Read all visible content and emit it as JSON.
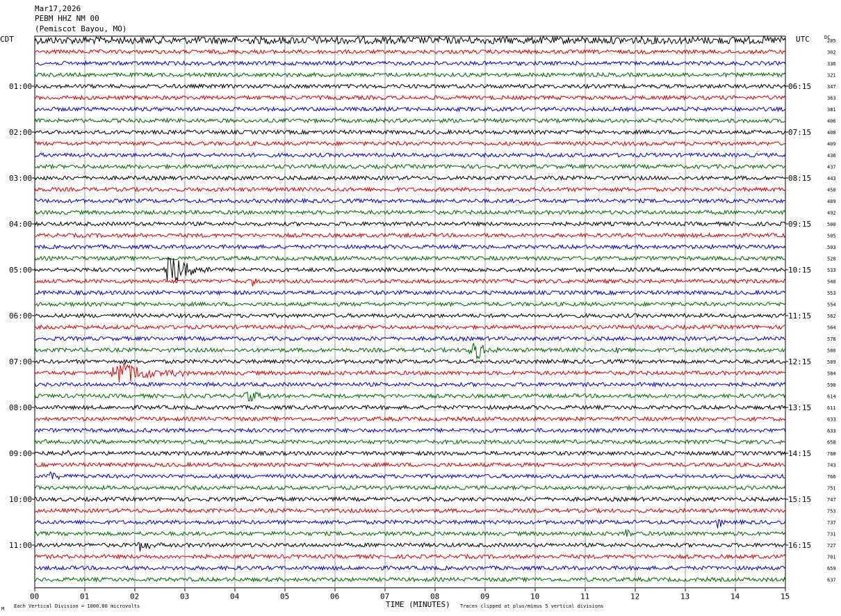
{
  "header": {
    "date": "Mar17,2026",
    "station": "PEBM HHZ NM 00",
    "location": "(Pemiscot Bayou, MO)"
  },
  "left_tz": "CDT",
  "right_tz": "UTC",
  "dc_label": "DC",
  "footer": {
    "vertical_division": "Each Vertical Division = 1000.00 microvolts",
    "clipping": "Traces clipped at plus/minus 5 vertical divisions",
    "logo_mark": "M"
  },
  "colors": {
    "trace_cycle": [
      "#000000",
      "#dd0000",
      "#0000cc",
      "#006600"
    ],
    "grid": "#999999"
  },
  "chart_data": {
    "type": "line",
    "title": "",
    "xlabel": "TIME (MINUTES)",
    "ylabel": "",
    "xlim": [
      0,
      15
    ],
    "x_ticks": [
      "00",
      "01",
      "02",
      "03",
      "04",
      "05",
      "06",
      "07",
      "08",
      "09",
      "10",
      "11",
      "12",
      "13",
      "14",
      "15"
    ],
    "traces_per_hour": 4,
    "minutes_per_trace": 15,
    "left_hour_labels": [
      "01:00",
      "02:00",
      "03:00",
      "04:00",
      "05:00",
      "06:00",
      "07:00",
      "08:00",
      "09:00",
      "10:00",
      "11:00"
    ],
    "right_hour_labels": [
      "06:15",
      "07:15",
      "08:15",
      "09:15",
      "10:15",
      "11:15",
      "12:15",
      "13:15",
      "14:15",
      "15:15",
      "16:15"
    ],
    "dc_offsets": [
      285,
      302,
      336,
      321,
      347,
      363,
      381,
      406,
      408,
      409,
      436,
      437,
      443,
      450,
      489,
      492,
      500,
      505,
      503,
      520,
      533,
      540,
      553,
      554,
      562,
      564,
      578,
      580,
      589,
      584,
      590,
      614,
      611,
      633,
      633,
      658,
      760,
      743,
      766,
      751,
      747,
      753,
      737,
      731,
      727,
      701,
      659,
      637
    ],
    "events": [
      {
        "trace": 20,
        "minute": 2.65,
        "amplitude": 5,
        "duration": 1.0
      },
      {
        "trace": 29,
        "minute": 1.6,
        "amplitude": 3.2,
        "duration": 1.6
      },
      {
        "trace": 27,
        "minute": 8.75,
        "amplitude": 2.6,
        "duration": 0.6
      },
      {
        "trace": 31,
        "minute": 4.25,
        "amplitude": 1.2,
        "duration": 0.6
      },
      {
        "trace": 44,
        "minute": 2.1,
        "amplitude": 1.6,
        "duration": 0.5
      },
      {
        "trace": 38,
        "minute": 0.3,
        "amplitude": 1.2,
        "duration": 0.5
      },
      {
        "trace": 42,
        "minute": 13.65,
        "amplitude": 1.0,
        "duration": 0.4
      },
      {
        "trace": 43,
        "minute": 11.85,
        "amplitude": 1.0,
        "duration": 0.25
      },
      {
        "trace": 36,
        "minute": 0.5,
        "amplitude": 0.6,
        "duration": 0.5
      },
      {
        "trace": 21,
        "minute": 4.35,
        "amplitude": 0.7,
        "duration": 0.2
      },
      {
        "trace": 27,
        "minute": 11.65,
        "amplitude": 0.6,
        "duration": 0.2
      },
      {
        "trace": 35,
        "minute": 0.2,
        "amplitude": 0.6,
        "duration": 0.15
      },
      {
        "trace": 19,
        "minute": 6.85,
        "amplitude": 0.5,
        "duration": 0.15
      }
    ]
  }
}
